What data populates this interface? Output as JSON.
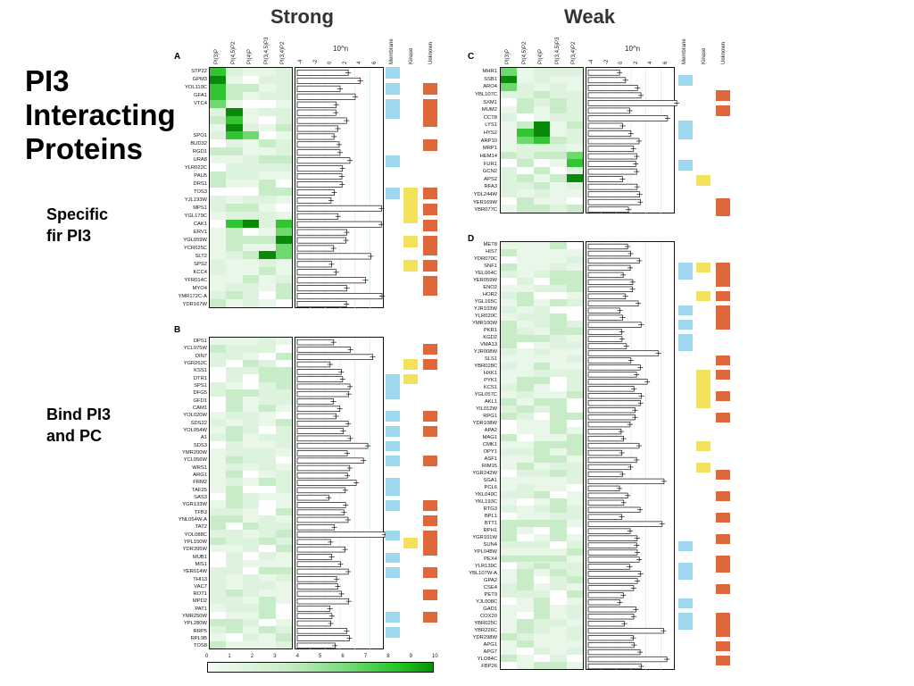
{
  "slide": {
    "title_lines": [
      "PI3",
      "Interacting",
      "Proteins"
    ],
    "note_specific": [
      "Specific",
      "fir PI3"
    ],
    "note_bind": [
      "Bind PI3",
      "and PC"
    ]
  },
  "figure": {
    "header_strong": "Strong",
    "header_weak": "Weak",
    "lipid_columns": [
      "PI(3)P",
      "PI(4,5)P2",
      "PI(4)P",
      "PI(3,4,5)P3",
      "PI(3,4)P2"
    ],
    "bar_axis_label": "10^n",
    "bar_axis_ticks": [
      "-4",
      "-2",
      "0",
      "2",
      "4",
      "6"
    ],
    "category_columns": [
      "Membrane",
      "Kinase",
      "Unknown"
    ],
    "scale_ticks": [
      "0",
      "1",
      "2",
      "3",
      "4",
      "5",
      "6",
      "7",
      "8",
      "9",
      "10"
    ],
    "colors": {
      "membrane": "#9fd8ee",
      "kinase": "#f2e15a",
      "unknown": "#e0673a",
      "green_dark": "#0a7a0a",
      "green_light": "#e6f5e6"
    },
    "panels": {
      "A": {
        "label": "A",
        "genes": [
          "STP22",
          "GPM3",
          "YOL119C",
          "GFA1",
          "VTC4",
          "",
          "",
          "",
          "SPO1",
          "BUD32",
          "RGD1",
          "URA8",
          "YLR022C",
          "PAU5",
          "DRS1",
          "TOS3",
          "YJL193W",
          "MPS1",
          "YGL179C",
          "CAK1",
          "ERV1",
          "YGL059W",
          "YCR025C",
          "SLT2",
          "SPS2",
          "KCC4",
          "YFR014C",
          "MYO4",
          "YMR172C-A",
          "YDR167W"
        ]
      },
      "B": {
        "label": "B",
        "genes": [
          "DPS1",
          "YCL075W",
          "DIN7",
          "YGR262C",
          "KSS1",
          "DTR1",
          "SPS1",
          "DFG5",
          "GFD1",
          "CAM1",
          "YOL020W",
          "SDS22",
          "YOL054W",
          "A1",
          "SDS3",
          "YMR200W",
          "YCL056W",
          "WRS1",
          "ARG1",
          "FRM2",
          "TAF25",
          "SAS3",
          "YGR133W",
          "TFB3",
          "YNL054W-A",
          "TAT2",
          "YOL088C",
          "YPL150W",
          "YDR395W",
          "MUB1",
          "MIS1",
          "YER014W",
          "THI13",
          "VAC7",
          "ROT1",
          "MPD2",
          "PAT1",
          "YMR250W",
          "YPL280W",
          "RRP5",
          "RPL9B",
          "TOS8"
        ]
      },
      "C": {
        "label": "C",
        "genes": [
          "MHR1",
          "SSB1",
          "ARO4",
          "YBL107C",
          "SXM1",
          "MUM2",
          "CCT8",
          "LYS1",
          "HYS2",
          "ARP10",
          "MRP1",
          "HEM14",
          "FUR1",
          "GCN2",
          "APS2",
          "RFA3",
          "YDL244W",
          "YER169W",
          "YBR077C"
        ]
      },
      "D": {
        "label": "D",
        "genes": [
          "MET8",
          "HIS7",
          "YDR070C",
          "SNF1",
          "YEL064C",
          "YER059W",
          "ENO2",
          "HOR2",
          "YGL165C",
          "YJR103W",
          "YLR020C",
          "YMR100W",
          "PKR1",
          "KGD2",
          "VMA13",
          "YJR008W",
          "SLS1",
          "YBR028C",
          "HXK1",
          "PYK1",
          "KCS1",
          "YGL057C",
          "AKL1",
          "YIL012W",
          "RPG1",
          "YDR108W",
          "APA2",
          "MAG1",
          "CMK1",
          "OPY1",
          "ASF1",
          "RIM15",
          "YGR242W",
          "SGA1",
          "PCL6",
          "YKL049C",
          "YKL193C",
          "RTG3",
          "BPL1",
          "BTT1",
          "RPH1",
          "YGR101W",
          "SUN4",
          "YPL048W",
          "PEX4",
          "YLR139C",
          "YBL107W-A",
          "GPA2",
          "CSE4",
          "PET9",
          "YJL008C",
          "GAD1",
          "COX20",
          "YBR025C",
          "YBR226C",
          "YDR298W",
          "APG1",
          "APG7",
          "YLO84C",
          "FBP26"
        ]
      }
    }
  }
}
